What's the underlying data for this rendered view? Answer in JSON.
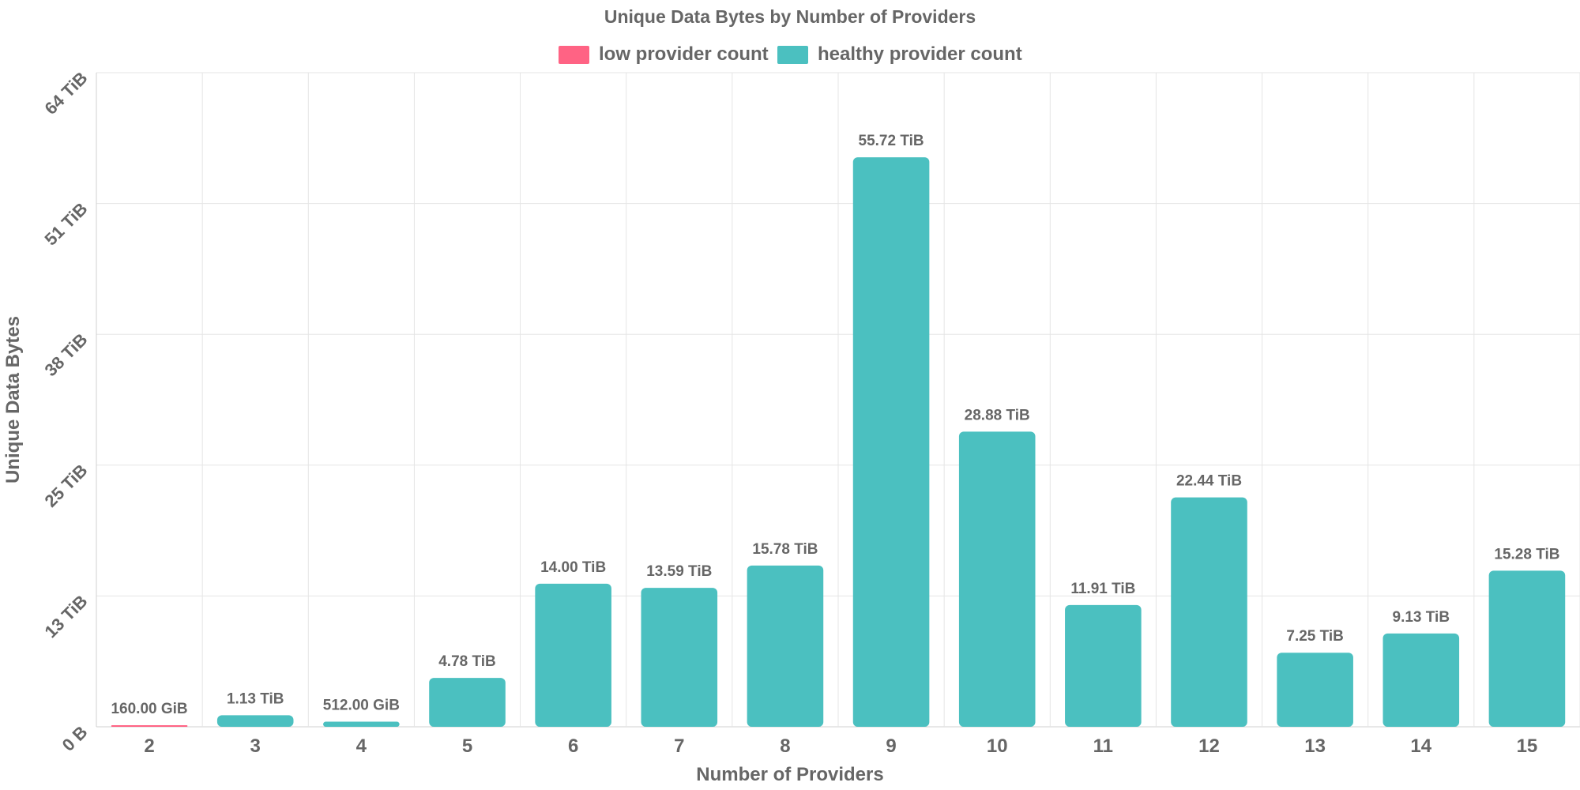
{
  "chart_data": {
    "type": "bar",
    "title": "Unique Data Bytes by Number of Providers",
    "xlabel": "Number of Providers",
    "ylabel": "Unique Data Bytes",
    "categories": [
      "2",
      "3",
      "4",
      "5",
      "6",
      "7",
      "8",
      "9",
      "10",
      "11",
      "12",
      "13",
      "14",
      "15"
    ],
    "values_tib": [
      0.15625,
      1.13,
      0.5,
      4.78,
      14.0,
      13.59,
      15.78,
      55.72,
      28.88,
      11.91,
      22.44,
      7.25,
      9.13,
      15.28
    ],
    "data_labels": [
      "160.00 GiB",
      "1.13 TiB",
      "512.00 GiB",
      "4.78 TiB",
      "14.00 TiB",
      "13.59 TiB",
      "15.78 TiB",
      "55.72 TiB",
      "28.88 TiB",
      "11.91 TiB",
      "22.44 TiB",
      "7.25 TiB",
      "9.13 TiB",
      "15.28 TiB"
    ],
    "bar_series": [
      "low",
      "healthy",
      "healthy",
      "healthy",
      "healthy",
      "healthy",
      "healthy",
      "healthy",
      "healthy",
      "healthy",
      "healthy",
      "healthy",
      "healthy",
      "healthy"
    ],
    "series": [
      {
        "key": "low",
        "name": "low provider count",
        "color": "#ff6384"
      },
      {
        "key": "healthy",
        "name": "healthy provider count",
        "color": "#4bc0c0"
      }
    ],
    "y_ticks": [
      "0 B",
      "13 TiB",
      "25 TiB",
      "38 TiB",
      "51 TiB",
      "64 TiB"
    ],
    "ylim": [
      0,
      64
    ],
    "y_unit": "TiB",
    "grid": true,
    "legend_position": "top"
  }
}
